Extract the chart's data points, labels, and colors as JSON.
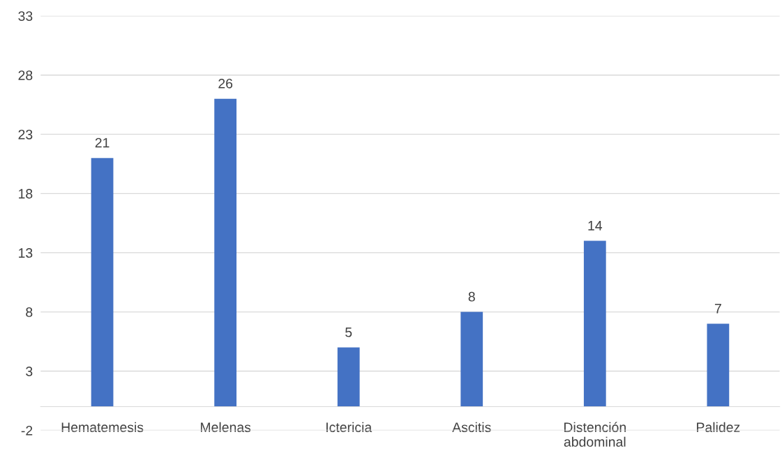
{
  "chart_data": {
    "type": "bar",
    "categories": [
      "Hematemesis",
      "Melenas",
      "Ictericia",
      "Ascitis",
      "Distención\nabdominal",
      "Palidez"
    ],
    "values": [
      21,
      26,
      5,
      8,
      14,
      7
    ],
    "color": "#4472c4",
    "ylim": [
      -2,
      33
    ],
    "yticks": [
      -2,
      3,
      8,
      13,
      18,
      23,
      28,
      33
    ],
    "grid": "y",
    "data_labels": true
  }
}
